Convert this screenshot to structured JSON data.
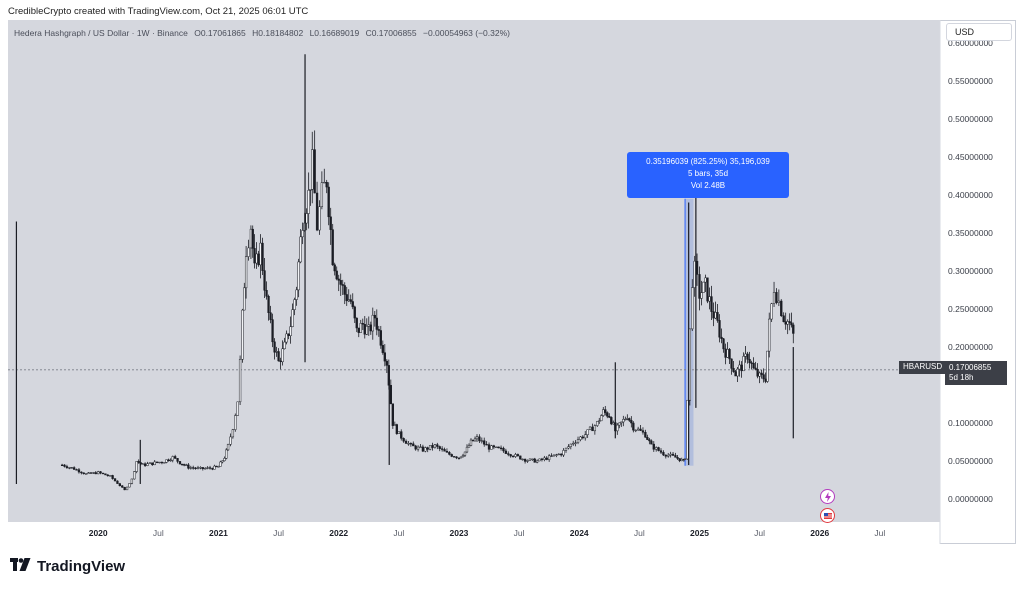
{
  "header": {
    "credit": "CredibleCrypto created with TradingView.com, Oct 21, 2025 06:01 UTC"
  },
  "symbol_line": {
    "name": "Hedera Hashgraph / US Dollar · 1W · Binance",
    "open": "O0.17061865",
    "high": "H0.18184802",
    "low": "L0.16689019",
    "close": "C0.17006855",
    "change": "−0.00054963 (−0.32%)"
  },
  "currency_button": "USD",
  "tooltip": {
    "line1": "0.35196039 (825.25%) 35,196,039",
    "line2": "5 bars, 35d",
    "line3": "Vol 2.48B"
  },
  "price_tag": {
    "symbol": "HBARUSD",
    "price": "0.17006855",
    "countdown": "5d 18h"
  },
  "brand": "TradingView",
  "colors": {
    "plot_bg": "#d5d7de",
    "candle": "#1b1d24",
    "measure_fill": "#a9b8dc",
    "measure_line": "#2962ff",
    "tooltip": "#2962ff"
  },
  "chart_data": {
    "type": "candlestick",
    "symbol": "HBARUSD",
    "interval": "1W",
    "exchange": "Binance",
    "ylim": [
      -0.03,
      0.63
    ],
    "xlim": [
      2019.25,
      2027.0
    ],
    "y_ticks": [
      "0.60000000",
      "0.55000000",
      "0.50000000",
      "0.45000000",
      "0.40000000",
      "0.35000000",
      "0.30000000",
      "0.25000000",
      "0.20000000",
      "0.10000000",
      "0.05000000",
      "0.00000000"
    ],
    "y_tick_values": [
      0.6,
      0.55,
      0.5,
      0.45,
      0.4,
      0.35,
      0.3,
      0.25,
      0.2,
      0.1,
      0.05,
      0.0
    ],
    "x_ticks": [
      {
        "label": "2020",
        "t": 2020.0,
        "bold": true
      },
      {
        "label": "Jul",
        "t": 2020.5,
        "bold": false
      },
      {
        "label": "2021",
        "t": 2021.0,
        "bold": true
      },
      {
        "label": "Jul",
        "t": 2021.5,
        "bold": false
      },
      {
        "label": "2022",
        "t": 2022.0,
        "bold": true
      },
      {
        "label": "Jul",
        "t": 2022.5,
        "bold": false
      },
      {
        "label": "2023",
        "t": 2023.0,
        "bold": true
      },
      {
        "label": "Jul",
        "t": 2023.5,
        "bold": false
      },
      {
        "label": "2024",
        "t": 2024.0,
        "bold": true
      },
      {
        "label": "Jul",
        "t": 2024.5,
        "bold": false
      },
      {
        "label": "2025",
        "t": 2025.0,
        "bold": true
      },
      {
        "label": "Jul",
        "t": 2025.5,
        "bold": false
      },
      {
        "label": "2026",
        "t": 2026.0,
        "bold": true
      },
      {
        "label": "Jul",
        "t": 2026.5,
        "bold": false
      }
    ],
    "current_price": 0.17006855,
    "close_path": [
      [
        2019.7,
        0.045
      ],
      [
        2019.8,
        0.04
      ],
      [
        2019.9,
        0.033
      ],
      [
        2020.0,
        0.035
      ],
      [
        2020.1,
        0.03
      ],
      [
        2020.18,
        0.018
      ],
      [
        2020.22,
        0.012
      ],
      [
        2020.28,
        0.026
      ],
      [
        2020.32,
        0.05
      ],
      [
        2020.37,
        0.045
      ],
      [
        2020.45,
        0.047
      ],
      [
        2020.55,
        0.05
      ],
      [
        2020.62,
        0.055
      ],
      [
        2020.68,
        0.048
      ],
      [
        2020.75,
        0.042
      ],
      [
        2020.85,
        0.04
      ],
      [
        2020.95,
        0.041
      ],
      [
        2021.0,
        0.043
      ],
      [
        2021.05,
        0.055
      ],
      [
        2021.08,
        0.07
      ],
      [
        2021.12,
        0.095
      ],
      [
        2021.16,
        0.13
      ],
      [
        2021.18,
        0.18
      ],
      [
        2021.2,
        0.24
      ],
      [
        2021.23,
        0.33
      ],
      [
        2021.27,
        0.36
      ],
      [
        2021.3,
        0.3
      ],
      [
        2021.35,
        0.33
      ],
      [
        2021.4,
        0.26
      ],
      [
        2021.45,
        0.21
      ],
      [
        2021.5,
        0.18
      ],
      [
        2021.55,
        0.2
      ],
      [
        2021.6,
        0.23
      ],
      [
        2021.65,
        0.28
      ],
      [
        2021.7,
        0.37
      ],
      [
        2021.75,
        0.4
      ],
      [
        2021.78,
        0.44
      ],
      [
        2021.82,
        0.36
      ],
      [
        2021.86,
        0.4
      ],
      [
        2021.9,
        0.42
      ],
      [
        2021.95,
        0.32
      ],
      [
        2022.0,
        0.29
      ],
      [
        2022.05,
        0.27
      ],
      [
        2022.1,
        0.26
      ],
      [
        2022.15,
        0.22
      ],
      [
        2022.2,
        0.23
      ],
      [
        2022.25,
        0.22
      ],
      [
        2022.3,
        0.24
      ],
      [
        2022.35,
        0.21
      ],
      [
        2022.4,
        0.18
      ],
      [
        2022.45,
        0.1
      ],
      [
        2022.5,
        0.085
      ],
      [
        2022.6,
        0.07
      ],
      [
        2022.7,
        0.065
      ],
      [
        2022.8,
        0.07
      ],
      [
        2022.9,
        0.06
      ],
      [
        2023.0,
        0.055
      ],
      [
        2023.05,
        0.062
      ],
      [
        2023.1,
        0.075
      ],
      [
        2023.15,
        0.08
      ],
      [
        2023.25,
        0.068
      ],
      [
        2023.35,
        0.065
      ],
      [
        2023.45,
        0.058
      ],
      [
        2023.55,
        0.052
      ],
      [
        2023.65,
        0.05
      ],
      [
        2023.75,
        0.055
      ],
      [
        2023.85,
        0.06
      ],
      [
        2023.95,
        0.075
      ],
      [
        2024.05,
        0.085
      ],
      [
        2024.15,
        0.1
      ],
      [
        2024.2,
        0.115
      ],
      [
        2024.25,
        0.11
      ],
      [
        2024.3,
        0.09
      ],
      [
        2024.35,
        0.1
      ],
      [
        2024.4,
        0.11
      ],
      [
        2024.45,
        0.095
      ],
      [
        2024.55,
        0.085
      ],
      [
        2024.6,
        0.07
      ],
      [
        2024.7,
        0.06
      ],
      [
        2024.8,
        0.055
      ],
      [
        2024.87,
        0.05
      ],
      [
        2024.88,
        0.055
      ],
      [
        2024.9,
        0.13
      ],
      [
        2024.92,
        0.22
      ],
      [
        2024.94,
        0.29
      ],
      [
        2024.96,
        0.3
      ],
      [
        2025.0,
        0.27
      ],
      [
        2025.05,
        0.28
      ],
      [
        2025.1,
        0.25
      ],
      [
        2025.15,
        0.23
      ],
      [
        2025.2,
        0.2
      ],
      [
        2025.25,
        0.185
      ],
      [
        2025.3,
        0.165
      ],
      [
        2025.35,
        0.175
      ],
      [
        2025.4,
        0.19
      ],
      [
        2025.45,
        0.17
      ],
      [
        2025.5,
        0.16
      ],
      [
        2025.55,
        0.16
      ],
      [
        2025.58,
        0.23
      ],
      [
        2025.62,
        0.28
      ],
      [
        2025.66,
        0.26
      ],
      [
        2025.7,
        0.24
      ],
      [
        2025.75,
        0.23
      ],
      [
        2025.78,
        0.215
      ],
      [
        2025.8,
        0.17
      ]
    ],
    "spikes": [
      {
        "t": 2019.32,
        "low": 0.02,
        "high": 0.365
      },
      {
        "t": 2020.35,
        "low": 0.02,
        "high": 0.078
      },
      {
        "t": 2021.72,
        "low": 0.18,
        "high": 0.585
      },
      {
        "t": 2022.42,
        "low": 0.045,
        "high": 0.16
      },
      {
        "t": 2024.3,
        "low": 0.08,
        "high": 0.18
      },
      {
        "t": 2024.91,
        "low": 0.045,
        "high": 0.39
      },
      {
        "t": 2024.97,
        "low": 0.12,
        "high": 0.4
      },
      {
        "t": 2025.78,
        "low": 0.08,
        "high": 0.2
      }
    ],
    "measure_range": {
      "t0": 2024.88,
      "t1": 2024.95,
      "low": 0.044,
      "high": 0.395
    },
    "tooltip_text": "0.35196039 (825.25%) 35,196,039 · 5 bars, 35d · Vol 2.48B"
  }
}
